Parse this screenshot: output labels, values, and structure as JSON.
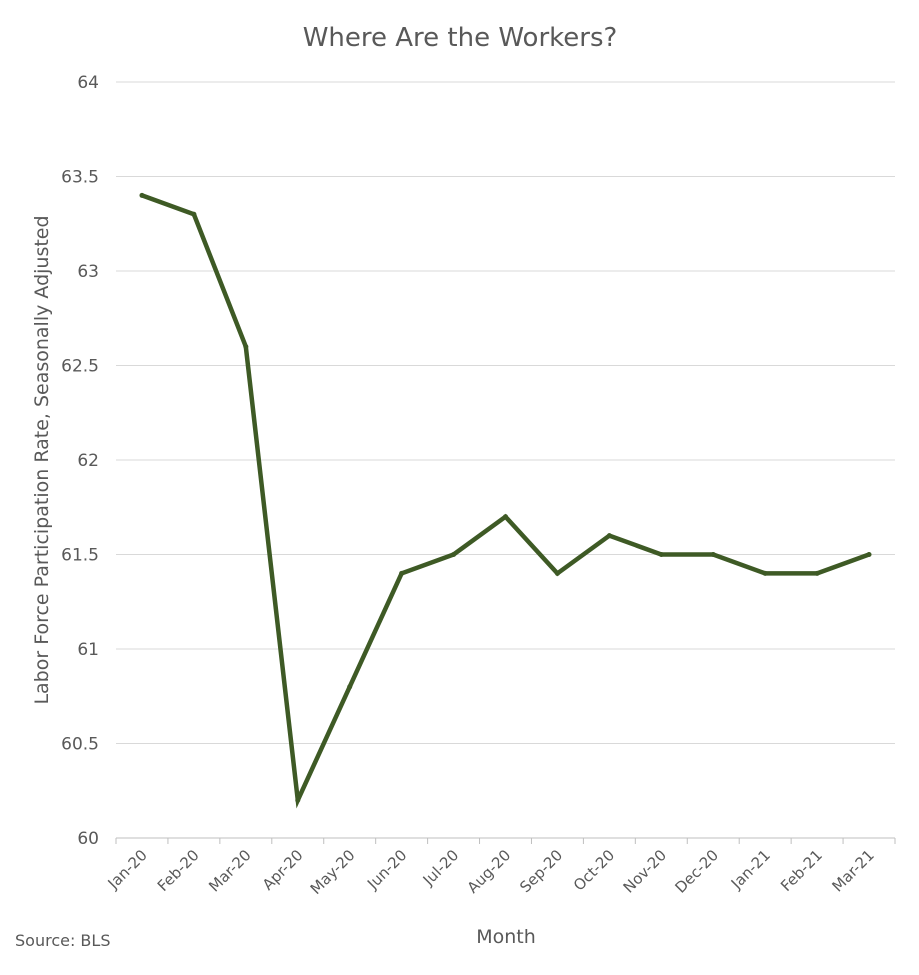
{
  "chart_data": {
    "type": "line",
    "title": "Where Are the Workers?",
    "xlabel": "Month",
    "ylabel": "Labor Force Participation Rate, Seasonally Adjusted",
    "source": "Source: BLS",
    "categories": [
      "Jan-20",
      "Feb-20",
      "Mar-20",
      "Apr-20",
      "May-20",
      "Jun-20",
      "Jul-20",
      "Aug-20",
      "Sep-20",
      "Oct-20",
      "Nov-20",
      "Dec-20",
      "Jan-21",
      "Feb-21",
      "Mar-21"
    ],
    "series": [
      {
        "color": "#3e5a25",
        "values": [
          63.4,
          63.3,
          62.6,
          60.2,
          60.8,
          61.4,
          61.5,
          61.7,
          61.4,
          61.6,
          61.5,
          61.5,
          61.4,
          61.4,
          61.5
        ]
      }
    ],
    "ylim": [
      60,
      64
    ],
    "yticks": [
      "60",
      "60.5",
      "61",
      "61.5",
      "62",
      "62.5",
      "63",
      "63.5",
      "64"
    ],
    "grid": true,
    "legend": "none"
  }
}
